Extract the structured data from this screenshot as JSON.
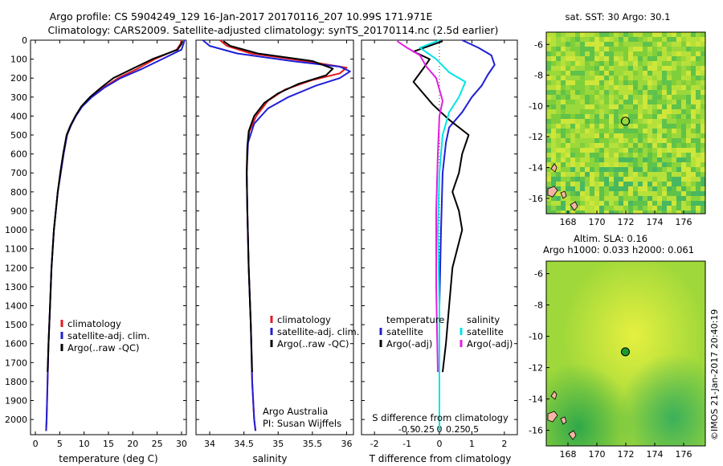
{
  "header": {
    "line1": "Argo profile: CS 5904249_129 16-Jan-2017 20170116_207 10.99S 171.971E",
    "line2": "Climatology: CARS2009. Satellite-adjusted climatology: synTS_20170114.nc (2.5d earlier)"
  },
  "colors": {
    "climatology": "#e41a1c",
    "satellite": "#1f1fd6",
    "argo": "#000000",
    "satellite_salinity_diff": "#00e5e5",
    "argo_salinity_diff": "#e020e0"
  },
  "chart_data": [
    {
      "id": "temperature",
      "type": "line",
      "xlabel": "temperature (deg C)",
      "ylabel": "",
      "xlim": [
        -1,
        31
      ],
      "ylim": [
        2080,
        0
      ],
      "xticks": [
        0,
        5,
        10,
        15,
        20,
        25,
        30
      ],
      "yticks": [
        0,
        100,
        200,
        300,
        400,
        500,
        600,
        700,
        800,
        900,
        1000,
        1100,
        1200,
        1300,
        1400,
        1500,
        1600,
        1700,
        1800,
        1900,
        2000
      ],
      "legend": [
        "climatology",
        "satellite-adj. clim.",
        "Argo(..raw -QC)"
      ],
      "legend_position": "lower-left",
      "series": [
        {
          "name": "climatology",
          "color_key": "climatology",
          "x": [
            30.0,
            29.8,
            29.0,
            24.5,
            21.0,
            17.0,
            14.0,
            11.5,
            9.5,
            8.3,
            7.3,
            6.5,
            5.8,
            5.2,
            4.6,
            4.2,
            3.8,
            3.3,
            3.0,
            2.7,
            2.5,
            2.3,
            2.2
          ],
          "y": [
            0,
            20,
            50,
            100,
            150,
            200,
            250,
            300,
            350,
            400,
            450,
            500,
            600,
            700,
            800,
            900,
            1000,
            1200,
            1400,
            1600,
            1800,
            2000,
            2060
          ]
        },
        {
          "name": "satellite-adj. clim.",
          "color_key": "satellite",
          "x": [
            30.6,
            30.4,
            30.0,
            26.0,
            22.0,
            17.5,
            14.2,
            11.6,
            9.6,
            8.3,
            7.3,
            6.5,
            5.8,
            5.2,
            4.6,
            4.2,
            3.8,
            3.3,
            3.0,
            2.7,
            2.5,
            2.3,
            2.2
          ],
          "y": [
            0,
            20,
            50,
            100,
            150,
            200,
            250,
            300,
            350,
            400,
            450,
            500,
            600,
            700,
            800,
            900,
            1000,
            1200,
            1400,
            1600,
            1800,
            2000,
            2060
          ]
        },
        {
          "name": "Argo(..raw -QC)",
          "color_key": "argo",
          "x": [
            30.2,
            30.0,
            29.2,
            24.0,
            20.0,
            16.0,
            13.5,
            11.2,
            9.4,
            8.2,
            7.2,
            6.4,
            5.7,
            5.1,
            4.6,
            4.2,
            3.8,
            3.3,
            3.0,
            2.7,
            2.5
          ],
          "y": [
            5,
            20,
            50,
            100,
            150,
            200,
            250,
            300,
            350,
            400,
            450,
            500,
            600,
            700,
            800,
            900,
            1000,
            1200,
            1400,
            1600,
            1750
          ]
        }
      ]
    },
    {
      "id": "salinity",
      "type": "line",
      "xlabel": "salinity",
      "xlim": [
        33.8,
        36.1
      ],
      "ylim": [
        2080,
        0
      ],
      "xticks": [
        34,
        34.5,
        35,
        35.5,
        36
      ],
      "legend": [
        "climatology",
        "satellite-adj. clim.",
        "Argo(..raw -QC)"
      ],
      "legend_position": "lower-right",
      "annotation": [
        "Argo Australia",
        "PI: Susan Wijffels"
      ],
      "series": [
        {
          "name": "climatology",
          "color_key": "climatology",
          "x": [
            34.15,
            34.25,
            34.6,
            35.4,
            36.0,
            35.9,
            35.5,
            35.1,
            34.85,
            34.68,
            34.58,
            34.55,
            34.54,
            34.55,
            34.57,
            34.6,
            34.62,
            34.65,
            34.67
          ],
          "y": [
            0,
            30,
            70,
            110,
            145,
            175,
            210,
            260,
            320,
            400,
            480,
            560,
            700,
            900,
            1200,
            1500,
            1800,
            2000,
            2060
          ]
        },
        {
          "name": "satellite-adj. clim.",
          "color_key": "satellite",
          "x": [
            33.9,
            34.0,
            34.4,
            35.2,
            35.9,
            36.05,
            35.9,
            35.55,
            35.15,
            34.85,
            34.65,
            34.56,
            34.54,
            34.55,
            34.57,
            34.6,
            34.62,
            34.65,
            34.67
          ],
          "y": [
            0,
            30,
            70,
            110,
            140,
            165,
            200,
            240,
            300,
            360,
            440,
            540,
            700,
            900,
            1200,
            1500,
            1800,
            2000,
            2060
          ]
        },
        {
          "name": "Argo(..raw -QC)",
          "color_key": "argo",
          "x": [
            34.2,
            34.3,
            34.7,
            35.5,
            35.8,
            35.7,
            35.3,
            35.0,
            34.8,
            34.65,
            34.57,
            34.55,
            34.54,
            34.55,
            34.57,
            34.6,
            34.62
          ],
          "y": [
            5,
            30,
            70,
            110,
            150,
            185,
            230,
            280,
            330,
            400,
            480,
            560,
            700,
            900,
            1200,
            1500,
            1750
          ]
        }
      ]
    },
    {
      "id": "difference",
      "type": "line",
      "xlabel": "T difference from climatology",
      "xlabel_top": "S difference from climatology",
      "xlim": [
        -2.4,
        2.4
      ],
      "ylim": [
        2080,
        0
      ],
      "xticks": [
        -2,
        -1,
        0,
        1,
        2
      ],
      "xtick_labels": [
        "-2",
        "-1",
        "0",
        "1",
        "2"
      ],
      "top_xticks": [
        -1.0,
        -0.5,
        0,
        0.5,
        1.0
      ],
      "top_xtick_labels": [
        "-0.5",
        "-0.25",
        "0",
        "0.25",
        "0.5"
      ],
      "legend_groups": [
        {
          "title": "temperature",
          "items": [
            "satellite",
            "Argo(-adj)"
          ]
        },
        {
          "title": "salinity",
          "items": [
            "satellite",
            "Argo(-adj)"
          ]
        }
      ],
      "series": [
        {
          "name": "satellite",
          "group": "temperature",
          "color_key": "satellite",
          "x": [
            0.7,
            1.2,
            1.6,
            1.7,
            1.5,
            1.3,
            1.0,
            0.7,
            0.3,
            0.2,
            0.1,
            0.05,
            0.0,
            0.0
          ],
          "y": [
            0,
            40,
            80,
            130,
            180,
            240,
            300,
            380,
            460,
            540,
            700,
            1000,
            1400,
            2060
          ]
        },
        {
          "name": "Argo(-adj)",
          "group": "temperature",
          "color_key": "argo",
          "x": [
            0.1,
            -0.8,
            -0.3,
            -0.5,
            -0.8,
            -0.5,
            -0.2,
            0.3,
            0.9,
            0.7,
            0.6,
            0.4,
            0.6,
            0.7,
            0.4,
            0.3,
            0.2,
            0.1
          ],
          "y": [
            5,
            60,
            100,
            150,
            220,
            280,
            340,
            420,
            500,
            600,
            700,
            800,
            900,
            1000,
            1200,
            1400,
            1600,
            1750
          ]
        },
        {
          "name": "satellite",
          "group": "salinity",
          "color_key": "satellite_salinity_diff",
          "x": [
            0.0,
            -0.6,
            -0.1,
            0.3,
            0.8,
            0.6,
            0.3,
            0.1,
            0.0,
            -0.05,
            0.0,
            0.0
          ],
          "y": [
            0,
            40,
            100,
            170,
            220,
            300,
            380,
            500,
            700,
            1000,
            1400,
            2060
          ]
        },
        {
          "name": "Argo(-adj)",
          "group": "salinity",
          "color_key": "argo_salinity_diff",
          "x": [
            -1.3,
            -1.0,
            -0.6,
            -0.4,
            -0.1,
            0.0,
            0.1,
            0.0,
            -0.05,
            -0.1,
            -0.1,
            -0.05
          ],
          "y": [
            5,
            40,
            80,
            140,
            200,
            260,
            320,
            400,
            600,
            900,
            1300,
            1750
          ]
        }
      ]
    },
    {
      "id": "map-sst",
      "type": "heatmap",
      "title": "sat. SST: 30  Argo: 30.1",
      "xlim": [
        166.5,
        177.5
      ],
      "ylim": [
        -17,
        -5.2
      ],
      "xticks": [
        168,
        170,
        172,
        174,
        176
      ],
      "yticks": [
        -6,
        -8,
        -10,
        -12,
        -14,
        -16
      ],
      "marker": {
        "lon": 171.971,
        "lat": -10.99
      }
    },
    {
      "id": "map-sla",
      "type": "heatmap",
      "title": "Altim. SLA: 0.16",
      "subtitle": "Argo h1000: 0.033 h2000: 0.061",
      "xlim": [
        166.5,
        177.5
      ],
      "ylim": [
        -17,
        -5.2
      ],
      "xticks": [
        168,
        170,
        172,
        174,
        176
      ],
      "yticks": [
        -6,
        -8,
        -10,
        -12,
        -14,
        -16
      ],
      "marker": {
        "lon": 171.971,
        "lat": -10.99
      }
    }
  ],
  "credit": "©IMOS 21-Jan-2017 20:40:19"
}
